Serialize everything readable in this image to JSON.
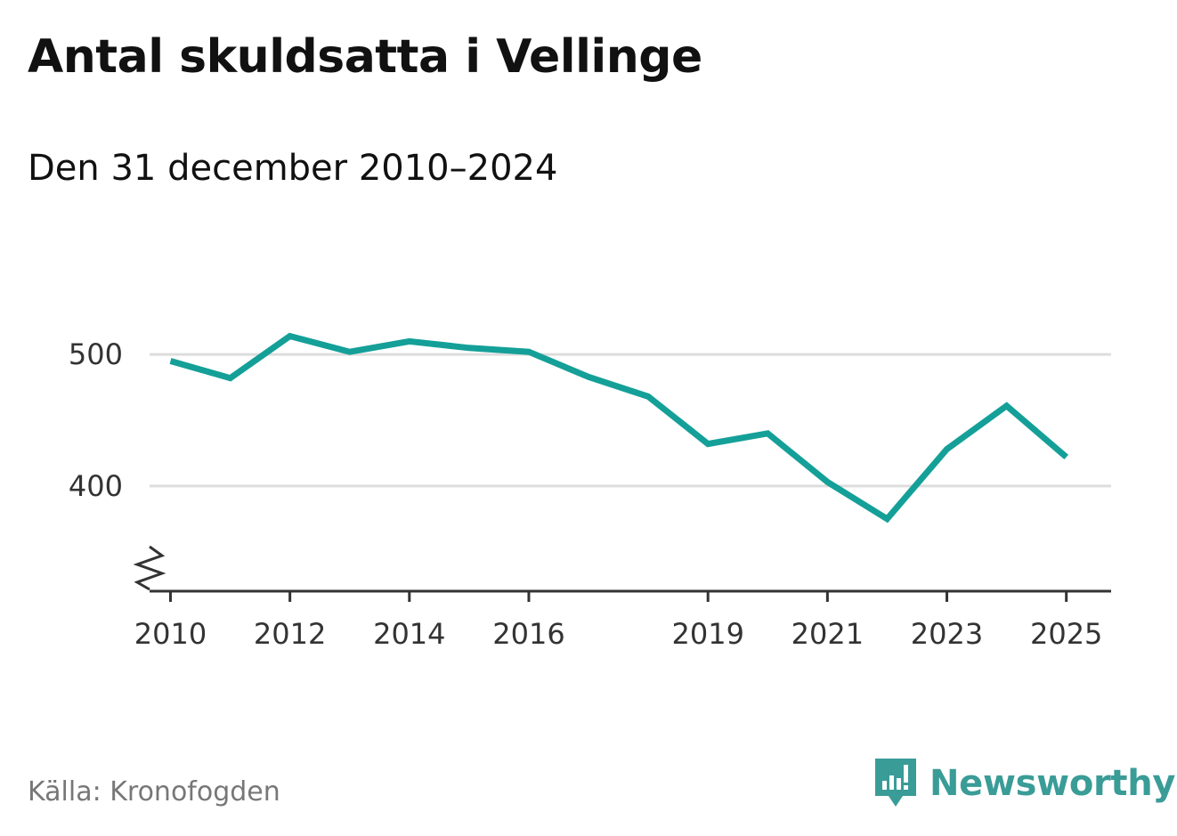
{
  "title": "Antal skuldsatta i Vellinge",
  "subtitle": "Den 31 december 2010–2024",
  "source": "Källa: Kronofogden",
  "brand": {
    "name": "Newsworthy",
    "icon": "newsworthy-logo-icon",
    "color": "#3a9c97"
  },
  "colors": {
    "line": "#14a098",
    "grid": "#dddddd",
    "axis": "#333333"
  },
  "chart_data": {
    "type": "line",
    "title": "Antal skuldsatta i Vellinge",
    "subtitle": "Den 31 december 2010–2024",
    "xlabel": "",
    "ylabel": "",
    "x_ticks": [
      "2010",
      "2012",
      "2014",
      "2016",
      "2019",
      "2021",
      "2023",
      "2025"
    ],
    "y_ticks": [
      400,
      500
    ],
    "ylim": [
      320,
      580
    ],
    "xlim": [
      2009.65,
      2025.75
    ],
    "grid": true,
    "axis_break": true,
    "series": [
      {
        "name": "Antal skuldsatta",
        "x": [
          2010,
          2011,
          2012,
          2013,
          2014,
          2015,
          2016,
          2017,
          2018,
          2019,
          2020,
          2021,
          2022,
          2023,
          2024,
          2025
        ],
        "values": [
          495,
          482,
          514,
          502,
          510,
          505,
          502,
          483,
          468,
          432,
          440,
          403,
          375,
          428,
          461,
          422
        ]
      }
    ]
  }
}
